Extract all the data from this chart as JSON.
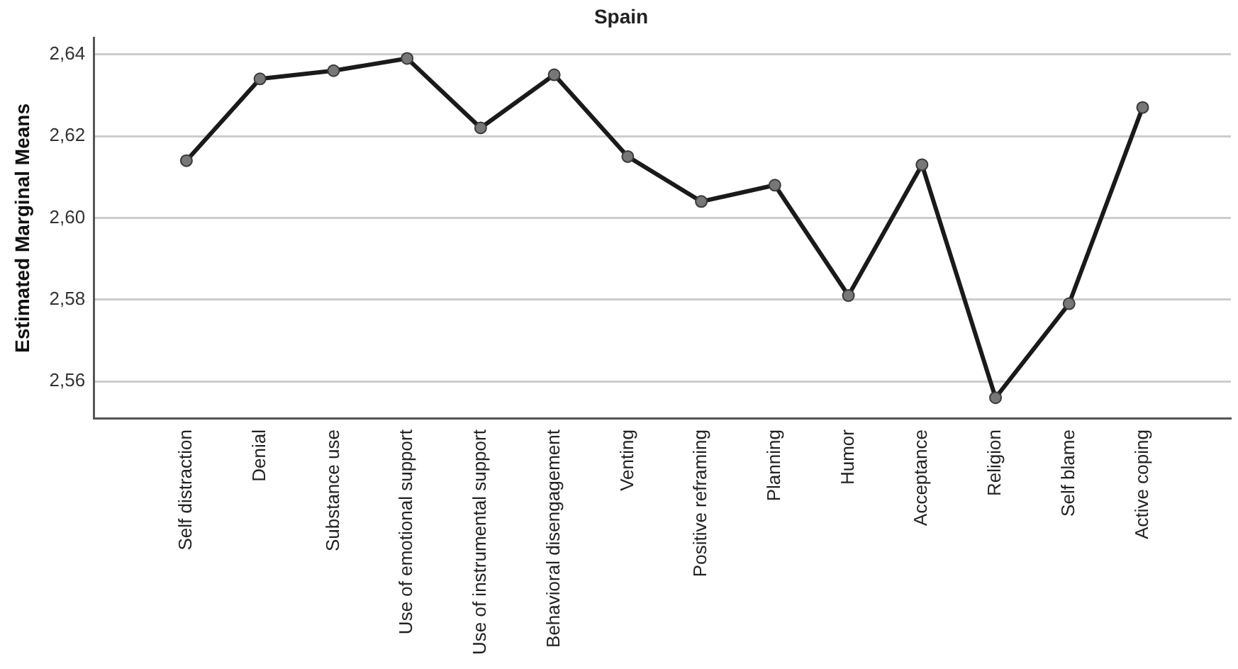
{
  "chart_data": {
    "type": "line",
    "title": "Spain",
    "ylabel": "Estimated Marginal Means",
    "categories": [
      "Self distraction",
      "Denial",
      "Substance use",
      "Use of emotional support",
      "Use of instrumental support",
      "Behavioral disengagement",
      "Venting",
      "Positive reframing",
      "Planning",
      "Humor",
      "Acceptance",
      "Religion",
      "Self blame",
      "Active coping"
    ],
    "series": [
      {
        "color": "#1a1a1a",
        "values": [
          2.614,
          2.634,
          2.636,
          2.639,
          2.622,
          2.635,
          2.615,
          2.604,
          2.608,
          2.581,
          2.613,
          2.556,
          2.579,
          2.627
        ]
      }
    ],
    "ylim": [
      2.551,
      2.644
    ],
    "yticks": [
      {
        "value": 2.56,
        "label": "2,56"
      },
      {
        "value": 2.58,
        "label": "2,58"
      },
      {
        "value": 2.6,
        "label": "2,60"
      },
      {
        "value": 2.62,
        "label": "2,62"
      },
      {
        "value": 2.64,
        "label": "2,64"
      }
    ],
    "grid": "y",
    "legend": false,
    "marker": "circle",
    "line_style": "solid"
  }
}
